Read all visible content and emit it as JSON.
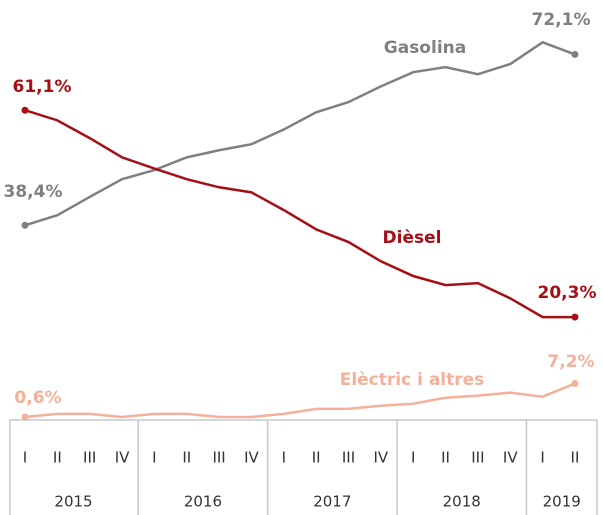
{
  "chart_data": {
    "type": "line",
    "categories": [
      "I",
      "II",
      "III",
      "IV",
      "I",
      "II",
      "III",
      "IV",
      "I",
      "II",
      "III",
      "IV",
      "I",
      "II",
      "III",
      "IV",
      "I",
      "II"
    ],
    "category_groups": [
      "2015",
      "2016",
      "2017",
      "2018",
      "2019"
    ],
    "series": [
      {
        "name": "Gasolina",
        "color": "#808080",
        "values": [
          38.4,
          40.4,
          44.0,
          47.5,
          49.3,
          51.8,
          53.2,
          54.4,
          57.3,
          60.7,
          62.7,
          65.8,
          68.6,
          69.6,
          68.2,
          70.2,
          74.5,
          72.1
        ],
        "value_labels": [
          "38,4%",
          null,
          null,
          null,
          null,
          null,
          null,
          null,
          null,
          null,
          null,
          null,
          null,
          null,
          null,
          null,
          null,
          "72,1%"
        ]
      },
      {
        "name": "Dièsel",
        "color": "#a50f15",
        "values": [
          61.1,
          59.1,
          55.6,
          51.8,
          49.6,
          47.5,
          45.9,
          44.9,
          41.4,
          37.6,
          35.1,
          31.3,
          28.4,
          26.6,
          27.0,
          24.0,
          20.3,
          20.3
        ],
        "value_labels": [
          "61,1%",
          null,
          null,
          null,
          null,
          null,
          null,
          null,
          null,
          null,
          null,
          null,
          null,
          null,
          null,
          null,
          null,
          "20,3%"
        ]
      },
      {
        "name": "Elèctric i altres",
        "color": "#f4b09a",
        "values": [
          0.6,
          1.2,
          1.2,
          0.6,
          1.2,
          1.2,
          0.6,
          0.6,
          1.2,
          2.2,
          2.2,
          2.8,
          3.2,
          4.4,
          4.8,
          5.4,
          4.6,
          7.2
        ],
        "value_labels": [
          "0,6%",
          null,
          null,
          null,
          null,
          null,
          null,
          null,
          null,
          null,
          null,
          null,
          null,
          null,
          null,
          null,
          null,
          "7,2%"
        ]
      }
    ]
  }
}
